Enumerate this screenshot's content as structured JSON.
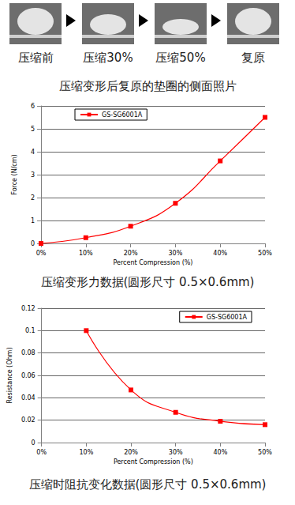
{
  "photos": {
    "labels": [
      "压缩前",
      "压缩30%",
      "压缩50%",
      "复原"
    ],
    "caption": "压缩变形后复原的垫圈的侧面照片"
  },
  "chart_data": [
    {
      "type": "line",
      "title": "压缩变形力数据(圆形尺寸 0.5×0.6mm)",
      "x_label": "Percent Compression (%)",
      "y_label": "Force (N/cm)",
      "series": [
        {
          "name": "GS-SG6001A",
          "color": "#ff0000",
          "marker": "square",
          "line_style": "smooth",
          "x": [
            0,
            10,
            20,
            30,
            40,
            50
          ],
          "values": [
            0,
            0.25,
            0.75,
            1.75,
            3.6,
            5.5
          ]
        }
      ],
      "xlim": [
        0,
        50
      ],
      "xticks": [
        {
          "value": 0,
          "label": "0%"
        },
        {
          "value": 10,
          "label": "10%"
        },
        {
          "value": 20,
          "label": "20%"
        },
        {
          "value": 30,
          "label": "30%"
        },
        {
          "value": 40,
          "label": "40%"
        },
        {
          "value": 50,
          "label": "50%"
        }
      ],
      "ylim": [
        0,
        6
      ],
      "yticks": [
        0,
        1,
        2,
        3,
        4,
        5,
        6
      ],
      "grid": true,
      "legend": "upper left"
    },
    {
      "type": "line",
      "title": "压缩时阻抗变化数据(圆形尺寸 0.5×0.6mm)",
      "x_label": "Percent Compression (%)",
      "y_label": "Resistance (Ohm)",
      "series": [
        {
          "name": "GS-SG6001A",
          "color": "#ff0000",
          "marker": "square",
          "line_style": "smooth",
          "x": [
            10,
            20,
            30,
            40,
            50
          ],
          "values": [
            0.1,
            0.047,
            0.027,
            0.019,
            0.016
          ]
        }
      ],
      "xlim": [
        0,
        50
      ],
      "xticks": [
        {
          "value": 0,
          "label": "0%"
        },
        {
          "value": 10,
          "label": "10%"
        },
        {
          "value": 20,
          "label": "20%"
        },
        {
          "value": 30,
          "label": "30%"
        },
        {
          "value": 40,
          "label": "40%"
        },
        {
          "value": 50,
          "label": "50%"
        }
      ],
      "ylim": [
        0,
        0.12
      ],
      "yticks": [
        0,
        0.02,
        0.04,
        0.06,
        0.08,
        0.1,
        0.12
      ],
      "grid": true,
      "legend": "upper right"
    }
  ]
}
